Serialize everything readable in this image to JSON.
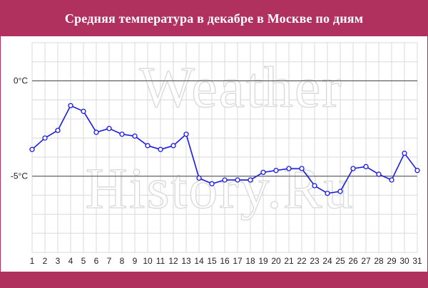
{
  "header": {
    "title": "Средняя температура в декабре в Москве по дням"
  },
  "watermark": [
    "Weather",
    "History.Ru"
  ],
  "colors": {
    "accent": "#b0305e",
    "line": "#1a1ae6",
    "grid": "#d9d9d9",
    "zero_lines": "#666666"
  },
  "chart_data": {
    "type": "line",
    "title": "Средняя температура в декабре в Москве по дням",
    "xlabel": "",
    "ylabel": "",
    "x": [
      1,
      2,
      3,
      4,
      5,
      6,
      7,
      8,
      9,
      10,
      11,
      12,
      13,
      14,
      15,
      16,
      17,
      18,
      19,
      20,
      21,
      22,
      23,
      24,
      25,
      26,
      27,
      28,
      29,
      30,
      31
    ],
    "series": [
      {
        "values": [
          -3.6,
          -3.0,
          -2.6,
          -1.3,
          -1.6,
          -2.7,
          -2.5,
          -2.8,
          -2.9,
          -3.4,
          -3.6,
          -3.4,
          -2.8,
          -5.1,
          -5.4,
          -5.2,
          -5.2,
          -5.2,
          -4.8,
          -4.7,
          -4.6,
          -4.6,
          -5.5,
          -5.9,
          -5.8,
          -4.6,
          -4.5,
          -4.9,
          -5.2,
          -3.8,
          -4.7
        ]
      }
    ],
    "y_ticks": [
      {
        "value": 0,
        "label": "0°C"
      },
      {
        "value": -5,
        "label": "-5°C"
      }
    ],
    "ylim": [
      -9,
      2
    ],
    "grid": true,
    "legend": "none"
  }
}
